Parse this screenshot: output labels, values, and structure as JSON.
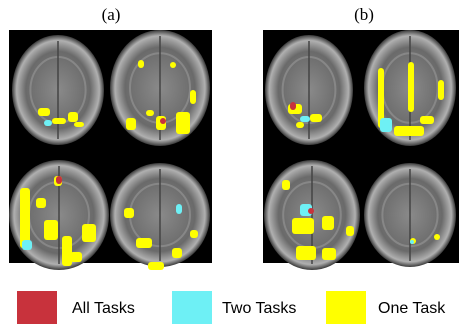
{
  "panels": [
    {
      "label": "(a)"
    },
    {
      "label": "(b)"
    }
  ],
  "legend": {
    "items": [
      {
        "label": "All Tasks",
        "color": "#c8323c"
      },
      {
        "label": "Two Tasks",
        "color": "#6ef0f5"
      },
      {
        "label": "One Task",
        "color": "#ffff00"
      }
    ]
  }
}
